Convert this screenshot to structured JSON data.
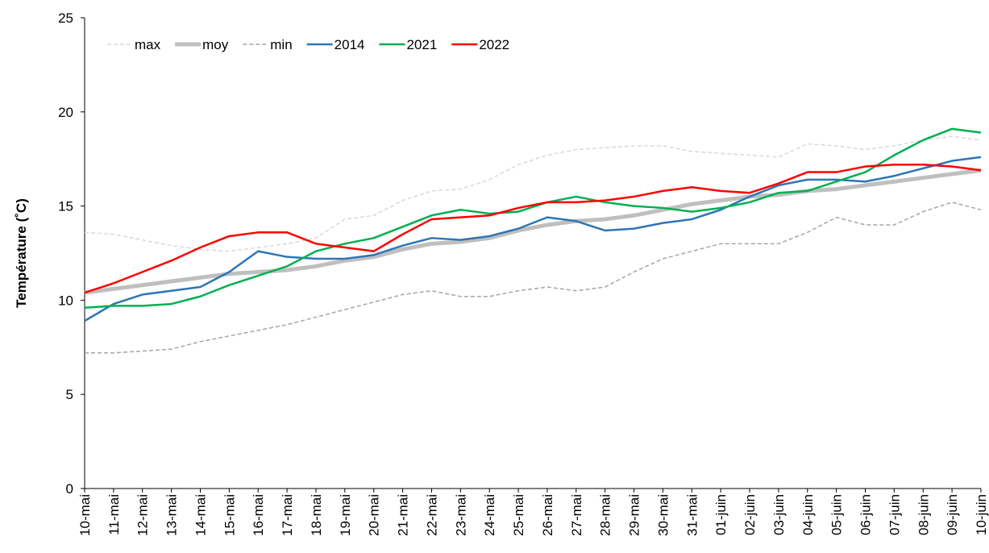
{
  "chart_data": {
    "type": "line",
    "y_label": "Température (˚C)",
    "categories": [
      "10-mai",
      "11-mai",
      "12-mai",
      "13-mai",
      "14-mai",
      "15-mai",
      "16-mai",
      "17-mai",
      "18-mai",
      "19-mai",
      "20-mai",
      "21-mai",
      "22-mai",
      "23-mai",
      "24-mai",
      "25-mai",
      "26-mai",
      "27-mai",
      "28-mai",
      "29-mai",
      "30-mai",
      "31-mai",
      "01-juin",
      "02-juin",
      "03-juin",
      "04-juin",
      "05-juin",
      "06-juin",
      "07-juin",
      "08-juin",
      "09-juin",
      "10-juin"
    ],
    "series": [
      {
        "name": "max",
        "color": "#d9d9d9",
        "dash": true,
        "width": 1.5,
        "values": [
          13.6,
          13.5,
          13.2,
          12.9,
          12.7,
          12.6,
          12.8,
          13.0,
          13.3,
          14.3,
          14.5,
          15.3,
          15.8,
          15.9,
          16.4,
          17.2,
          17.7,
          18.0,
          18.1,
          18.2,
          18.2,
          17.9,
          17.8,
          17.7,
          17.6,
          18.3,
          18.2,
          18.0,
          18.2,
          18.5,
          18.7,
          18.5
        ]
      },
      {
        "name": "moy",
        "color": "#bfbfbf",
        "dash": false,
        "width": 5,
        "values": [
          10.4,
          10.6,
          10.8,
          11.0,
          11.2,
          11.4,
          11.5,
          11.6,
          11.8,
          12.1,
          12.3,
          12.7,
          13.0,
          13.1,
          13.3,
          13.7,
          14.0,
          14.2,
          14.3,
          14.5,
          14.8,
          15.1,
          15.3,
          15.5,
          15.6,
          15.8,
          15.9,
          16.1,
          16.3,
          16.5,
          16.7,
          16.9
        ]
      },
      {
        "name": "min",
        "color": "#a6a6a6",
        "dash": true,
        "width": 1.5,
        "values": [
          7.2,
          7.2,
          7.3,
          7.4,
          7.8,
          8.1,
          8.4,
          8.7,
          9.1,
          9.5,
          9.9,
          10.3,
          10.5,
          10.2,
          10.2,
          10.5,
          10.7,
          10.5,
          10.7,
          11.5,
          12.2,
          12.6,
          13.0,
          13.0,
          13.0,
          13.6,
          14.4,
          14.0,
          14.0,
          14.7,
          15.2,
          14.8
        ]
      },
      {
        "name": "2014",
        "color": "#2e75b6",
        "dash": false,
        "width": 2.5,
        "values": [
          8.9,
          9.8,
          10.3,
          10.5,
          10.7,
          11.5,
          12.6,
          12.3,
          12.2,
          12.2,
          12.4,
          12.9,
          13.3,
          13.2,
          13.4,
          13.8,
          14.4,
          14.2,
          13.7,
          13.8,
          14.1,
          14.3,
          14.8,
          15.5,
          16.1,
          16.4,
          16.4,
          16.3,
          16.6,
          17.0,
          17.4,
          17.6
        ]
      },
      {
        "name": "2021",
        "color": "#00b050",
        "dash": false,
        "width": 2.5,
        "values": [
          9.6,
          9.7,
          9.7,
          9.8,
          10.2,
          10.8,
          11.3,
          11.8,
          12.6,
          13.0,
          13.3,
          13.9,
          14.5,
          14.8,
          14.6,
          14.7,
          15.2,
          15.5,
          15.2,
          15.0,
          14.9,
          14.7,
          14.9,
          15.2,
          15.7,
          15.8,
          16.3,
          16.8,
          17.7,
          18.5,
          19.1,
          18.9
        ]
      },
      {
        "name": "2022",
        "color": "#ff0000",
        "dash": false,
        "width": 2.5,
        "values": [
          10.4,
          10.9,
          11.5,
          12.1,
          12.8,
          13.4,
          13.6,
          13.6,
          13.0,
          12.8,
          12.6,
          13.5,
          14.3,
          14.4,
          14.5,
          14.9,
          15.2,
          15.2,
          15.3,
          15.5,
          15.8,
          16.0,
          15.8,
          15.7,
          16.2,
          16.8,
          16.8,
          17.1,
          17.2,
          17.2,
          17.1,
          16.9
        ]
      }
    ],
    "ylim": [
      0,
      25
    ],
    "yticks": [
      0,
      5,
      10,
      15,
      20,
      25
    ],
    "grid": false,
    "legend": "top-left"
  }
}
